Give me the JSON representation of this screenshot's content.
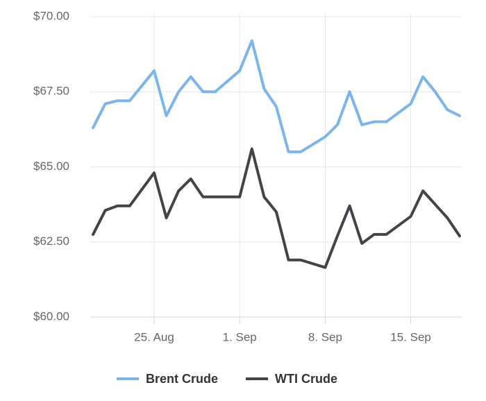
{
  "chart_data": {
    "type": "line",
    "x": [
      "20. Aug",
      "21. Aug",
      "22. Aug",
      "23. Aug",
      "25. Aug",
      "26. Aug",
      "27. Aug",
      "28. Aug",
      "29. Aug",
      "30. Aug",
      "1. Sep",
      "2. Sep",
      "3. Sep",
      "4. Sep",
      "5. Sep",
      "6. Sep",
      "8. Sep",
      "9. Sep",
      "10. Sep",
      "11. Sep",
      "12. Sep",
      "13. Sep",
      "15. Sep",
      "16. Sep",
      "17. Sep",
      "18. Sep",
      "19. Sep"
    ],
    "xlim": [
      "20. Aug",
      "19. Sep"
    ],
    "xticks": [
      "25. Aug",
      "1. Sep",
      "8. Sep",
      "15. Sep"
    ],
    "ylim": [
      60,
      70
    ],
    "yticks": [
      {
        "value": 60,
        "label": "$60.00"
      },
      {
        "value": 62.5,
        "label": "$62.50"
      },
      {
        "value": 65,
        "label": "$65.00"
      },
      {
        "value": 67.5,
        "label": "$67.50"
      },
      {
        "value": 70,
        "label": "$70.00"
      }
    ],
    "grid": true,
    "legend": "bottom",
    "series": [
      {
        "name": "Brent Crude",
        "color": "#7cb5ec",
        "values": [
          66.3,
          67.1,
          67.2,
          67.2,
          68.2,
          66.7,
          67.5,
          68.0,
          67.5,
          67.5,
          68.2,
          69.2,
          67.6,
          67.0,
          65.5,
          65.5,
          66.0,
          66.4,
          67.5,
          66.4,
          66.5,
          66.5,
          67.1,
          68.0,
          67.5,
          66.9,
          66.7
        ]
      },
      {
        "name": "WTI Crude",
        "color": "#434348",
        "values": [
          62.75,
          63.55,
          63.7,
          63.7,
          64.8,
          63.3,
          64.2,
          64.6,
          64.0,
          64.0,
          64.0,
          65.6,
          64.0,
          63.5,
          61.9,
          61.9,
          61.65,
          62.7,
          63.7,
          62.45,
          62.75,
          62.75,
          63.35,
          64.2,
          63.75,
          63.3,
          62.7
        ]
      }
    ]
  }
}
